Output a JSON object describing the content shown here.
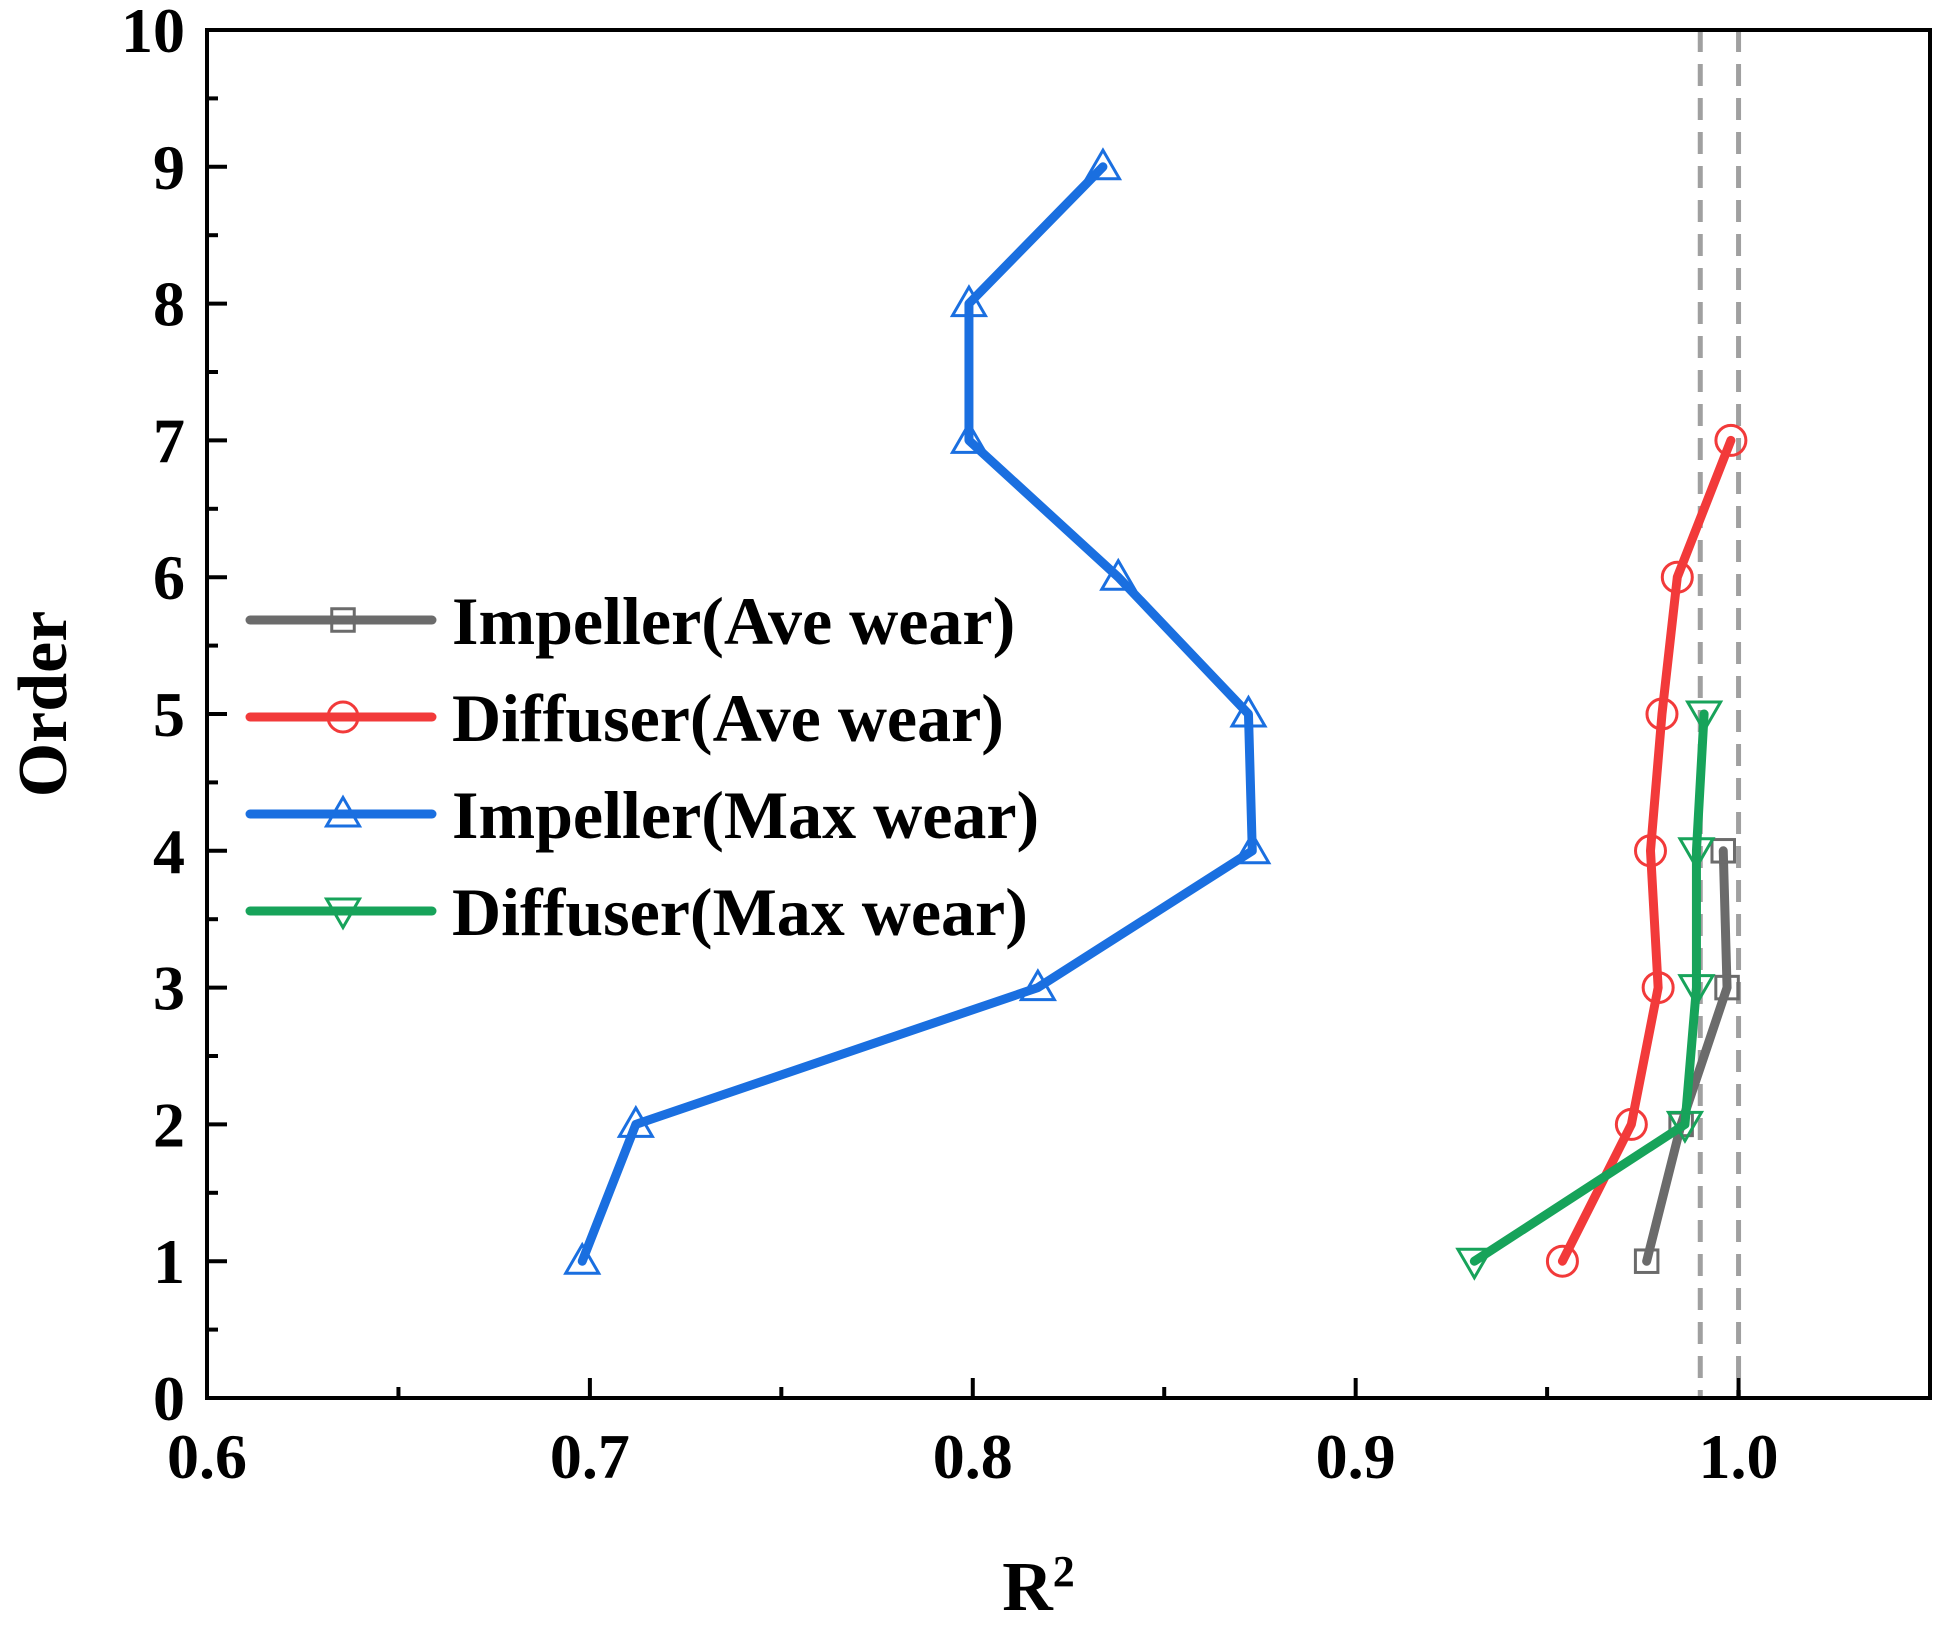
{
  "chart_data": {
    "type": "line",
    "orientation": "vertical-profile",
    "title": "",
    "xlabel": "R",
    "xlabel_superscript": "2",
    "ylabel": "Order",
    "xlim": [
      0.6,
      1.05
    ],
    "ylim": [
      0,
      10
    ],
    "x_ticks": [
      0.6,
      0.7,
      0.8,
      0.9,
      1.0
    ],
    "x_tick_labels": [
      "0.6",
      "0.7",
      "0.8",
      "0.9",
      "1.0"
    ],
    "y_ticks": [
      0,
      1,
      2,
      3,
      4,
      5,
      6,
      7,
      8,
      9,
      10
    ],
    "y_tick_labels": [
      "0",
      "1",
      "2",
      "3",
      "4",
      "5",
      "6",
      "7",
      "8",
      "9",
      "10"
    ],
    "reference_lines_x": [
      0.99,
      1.0
    ],
    "grid": false,
    "legend_position": "center-left",
    "series": [
      {
        "name": "Impeller(Ave wear)",
        "color": "#6b6b6b",
        "marker": "square",
        "points": [
          {
            "x": 0.976,
            "y": 1
          },
          {
            "x": 0.985,
            "y": 2
          },
          {
            "x": 0.997,
            "y": 3
          },
          {
            "x": 0.996,
            "y": 4
          }
        ]
      },
      {
        "name": "Diffuser(Ave wear)",
        "color": "#f23a3a",
        "marker": "circle",
        "points": [
          {
            "x": 0.954,
            "y": 1
          },
          {
            "x": 0.972,
            "y": 2
          },
          {
            "x": 0.979,
            "y": 3
          },
          {
            "x": 0.977,
            "y": 4
          },
          {
            "x": 0.98,
            "y": 5
          },
          {
            "x": 0.984,
            "y": 6
          },
          {
            "x": 0.998,
            "y": 7
          }
        ]
      },
      {
        "name": "Impeller(Max wear)",
        "color": "#1a6fe0",
        "marker": "triangle-up",
        "points": [
          {
            "x": 0.698,
            "y": 1
          },
          {
            "x": 0.712,
            "y": 2
          },
          {
            "x": 0.817,
            "y": 3
          },
          {
            "x": 0.873,
            "y": 4
          },
          {
            "x": 0.872,
            "y": 5
          },
          {
            "x": 0.838,
            "y": 6
          },
          {
            "x": 0.799,
            "y": 7
          },
          {
            "x": 0.799,
            "y": 8
          },
          {
            "x": 0.834,
            "y": 9
          }
        ]
      },
      {
        "name": "Diffuser(Max wear)",
        "color": "#17a35a",
        "marker": "triangle-down",
        "points": [
          {
            "x": 0.931,
            "y": 1
          },
          {
            "x": 0.986,
            "y": 2
          },
          {
            "x": 0.989,
            "y": 3
          },
          {
            "x": 0.989,
            "y": 4
          },
          {
            "x": 0.991,
            "y": 5
          }
        ]
      }
    ]
  }
}
